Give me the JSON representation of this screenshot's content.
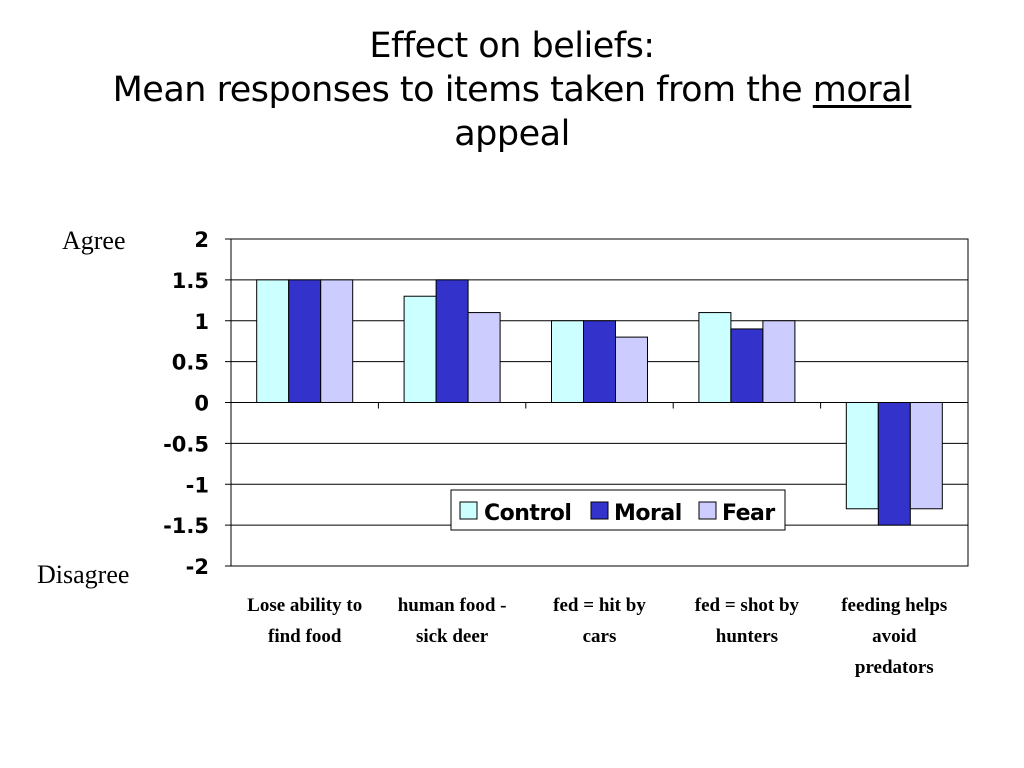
{
  "slide": {
    "title_line1": "Effect on beliefs:",
    "title_line2_prefix": "Mean responses to items taken from the ",
    "title_line2_underlined": "moral",
    "title_line3": "appeal"
  },
  "side_labels": {
    "agree": "Agree",
    "disagree": "Disagree"
  },
  "chart_data": {
    "type": "bar",
    "categories": [
      [
        "Lose ability to",
        "find food"
      ],
      [
        "human food -",
        "sick deer"
      ],
      [
        "fed = hit by",
        "cars"
      ],
      [
        "fed = shot by",
        "hunters"
      ],
      [
        "feeding helps",
        "avoid",
        "predators"
      ]
    ],
    "series": [
      {
        "name": "Control",
        "values": [
          1.5,
          1.3,
          1.0,
          1.1,
          -1.3
        ],
        "color": "#ccffff"
      },
      {
        "name": "Moral",
        "values": [
          1.5,
          1.5,
          1.0,
          0.9,
          -1.5
        ],
        "color": "#3333cc"
      },
      {
        "name": "Fear",
        "values": [
          1.5,
          1.1,
          0.8,
          1.0,
          -1.3
        ],
        "color": "#ccccff"
      }
    ],
    "ylim": [
      -2,
      2
    ],
    "yticks": [
      "2",
      "1.5",
      "1",
      "0.5",
      "0",
      "-0.5",
      "-1",
      "-1.5",
      "-2"
    ],
    "grid": true,
    "legend_position": "bottom-right-inside"
  }
}
